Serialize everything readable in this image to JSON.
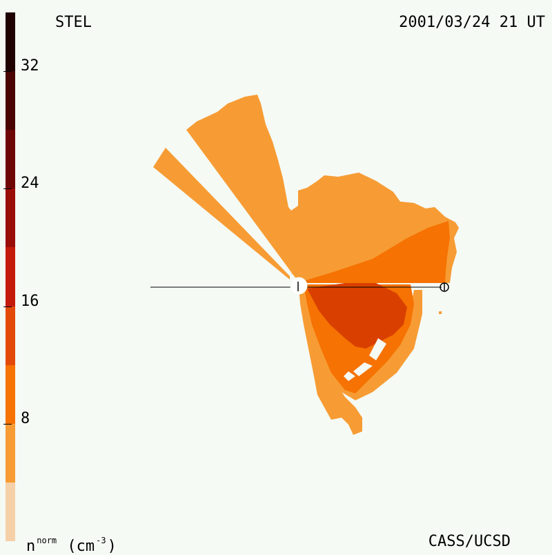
{
  "header": {
    "instrument": "STEL",
    "timestamp": "2001/03/24 21 UT"
  },
  "footer": {
    "credit": "CASS/UCSD",
    "units_base": "n",
    "units_sup": "norm",
    "units_rest": "(cm",
    "units_exp": "-3",
    "units_close": ")"
  },
  "colorbar": {
    "tick_labels": [
      "32",
      "24",
      "16",
      "8"
    ],
    "tick_values": [
      32,
      24,
      16,
      8
    ],
    "range": [
      0,
      36
    ],
    "levels": [
      {
        "min": 0,
        "max": 4,
        "color": "#f6d0a8"
      },
      {
        "min": 4,
        "max": 8,
        "color": "#f79c34"
      },
      {
        "min": 8,
        "max": 12,
        "color": "#f67202"
      },
      {
        "min": 12,
        "max": 16,
        "color": "#e34a0a"
      },
      {
        "min": 16,
        "max": 20,
        "color": "#c41a0c"
      },
      {
        "min": 20,
        "max": 24,
        "color": "#9a0c08"
      },
      {
        "min": 24,
        "max": 28,
        "color": "#6e0606"
      },
      {
        "min": 28,
        "max": 32,
        "color": "#4a0404"
      },
      {
        "min": 32,
        "max": 36,
        "color": "#200202"
      }
    ]
  },
  "colors": {
    "background": "#f5faf5",
    "level_1": "#f6d0a8",
    "level_2": "#f79c34",
    "level_3": "#f67202",
    "level_4": "#d94000"
  },
  "icons": {
    "sun": "sun-icon",
    "earth": "earth-icon"
  }
}
